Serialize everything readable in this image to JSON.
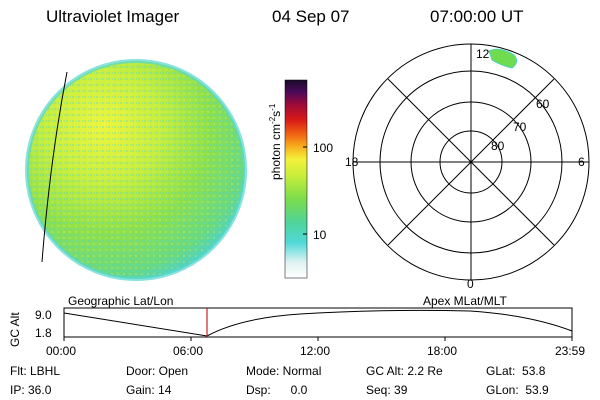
{
  "header": {
    "instrument": "Ultraviolet Imager",
    "date": "04 Sep 07",
    "time": "07:00:00 UT"
  },
  "colorbar": {
    "unit_label": "photon cm",
    "unit_sup1": "-2",
    "unit_s": "s",
    "unit_sup2": "-1",
    "tick_high": "100",
    "tick_low": "10"
  },
  "polar_plot": {
    "mlt_top": "12",
    "mlt_left": "18",
    "mlt_right": "6",
    "mlt_bottom": "0",
    "lat_60": "60",
    "lat_70": "70",
    "lat_80": "80"
  },
  "captions": {
    "left": "Geographic Lat/Lon",
    "right": "Apex MLat/MLT"
  },
  "altitude_plot": {
    "ylabel": "GC Alt",
    "y_high": "9.0",
    "y_low": "1.8",
    "x_ticks": [
      "00:00",
      "06:00",
      "12:00",
      "18:00",
      "23:59"
    ]
  },
  "info": {
    "flt": "Flt: LBHL",
    "ip": "IP: 36.0",
    "door": "Door: Open",
    "gain": "Gain: 14",
    "mode": "Mode: Normal",
    "dsp": "Dsp:      0.0",
    "gcalt": "GC Alt: 2.2 Re",
    "seq": "Seq: 39",
    "glat": "GLat:  53.8",
    "glon": "GLon:  53.9"
  },
  "colors": {
    "disk_main": "#8fe04a",
    "disk_yellow": "#e8f53a",
    "disk_edge": "#56d6c8",
    "orbit_marker": "#cc2222"
  }
}
